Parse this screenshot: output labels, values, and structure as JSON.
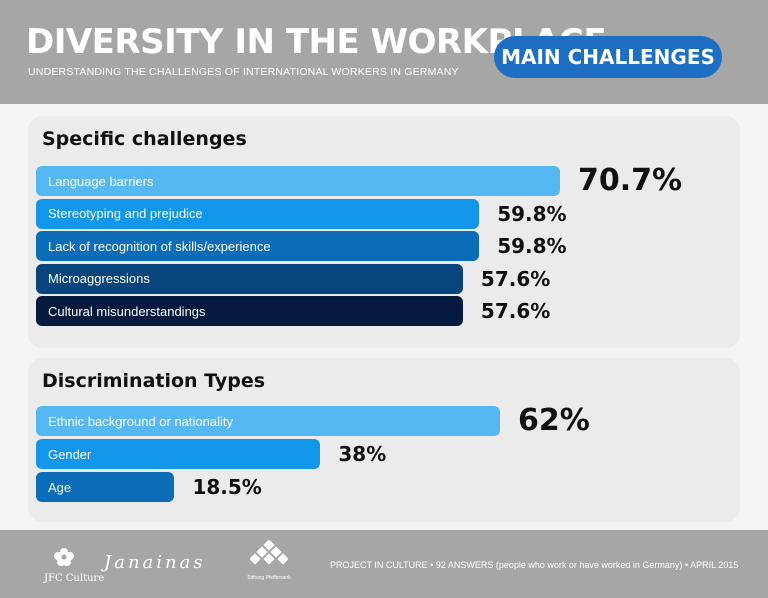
{
  "header": {
    "title": "DIVERSITY IN THE WORKPLACE",
    "subtitle": "UNDERSTANDING THE CHALLENGES OF INTERNATIONAL WORKERS IN GERMANY",
    "badge": "MAIN CHALLENGES"
  },
  "chart_data": [
    {
      "type": "bar",
      "title": "Specific challenges",
      "categories": [
        "Language barriers",
        "Stereotyping and prejudice",
        "Lack of recognition of skills/experience",
        "Microaggressions",
        "Cultural misunderstandings"
      ],
      "values": [
        70.7,
        59.8,
        59.8,
        57.6,
        57.6
      ],
      "value_labels": [
        "70.7%",
        "59.8%",
        "59.8%",
        "57.6%",
        "57.6%"
      ],
      "colors": [
        "#55b8f2",
        "#1296ea",
        "#0b6cb8",
        "#07457c",
        "#041a3f"
      ],
      "orientation": "horizontal"
    },
    {
      "type": "bar",
      "title": "Discrimination Types",
      "categories": [
        "Ethnic background or nationality",
        "Gender",
        "Age"
      ],
      "values": [
        62,
        38,
        18.5
      ],
      "value_labels": [
        "62%",
        "38%",
        "18.5%"
      ],
      "colors": [
        "#55b8f2",
        "#1296ea",
        "#0b6cb8"
      ],
      "orientation": "horizontal"
    }
  ],
  "footer": {
    "logos": [
      "JFC Culture",
      "Janainas",
      "Stiftung Pfefferwerk"
    ],
    "source": "PROJECT IN CULTURE • 92 ANSWERS (people who work or have worked in Germany) • APRIL 2015"
  }
}
